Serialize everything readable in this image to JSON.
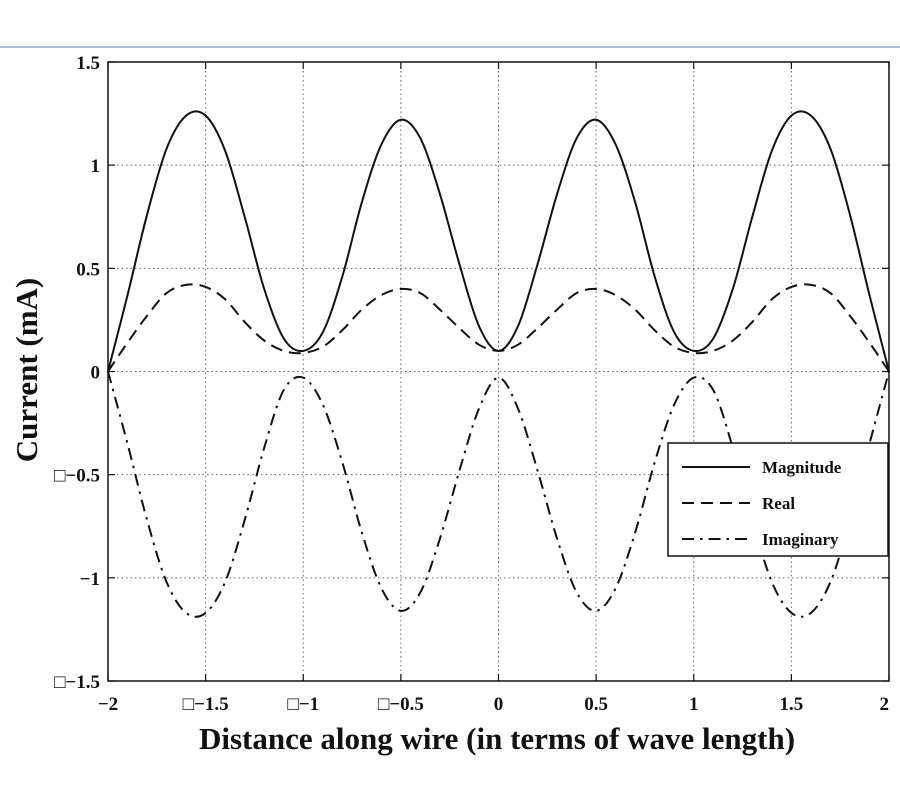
{
  "chart_data": {
    "type": "line",
    "title": "",
    "xlabel": "Distance along wire (in terms of wave length)",
    "ylabel": "Current (mA)",
    "xlim": [
      -2,
      2
    ],
    "ylim": [
      -1.5,
      1.5
    ],
    "grid": true,
    "legend_position": "right",
    "x_ticks": [
      {
        "value": -2,
        "label": "\u0005−2"
      },
      {
        "value": -1.5,
        "label": "□−1.5"
      },
      {
        "value": -1,
        "label": "□−1"
      },
      {
        "value": -0.5,
        "label": "□−0.5"
      },
      {
        "value": 0,
        "label": "0"
      },
      {
        "value": 0.5,
        "label": "0.5"
      },
      {
        "value": 1,
        "label": "1"
      },
      {
        "value": 1.5,
        "label": "1.5"
      },
      {
        "value": 2,
        "label": "2"
      }
    ],
    "y_ticks": [
      {
        "value": 1.5,
        "label": "1.5"
      },
      {
        "value": 1,
        "label": "1"
      },
      {
        "value": 0.5,
        "label": "0.5"
      },
      {
        "value": 0,
        "label": "0"
      },
      {
        "value": -0.5,
        "label": "□−0.5"
      },
      {
        "value": -1,
        "label": "−1"
      },
      {
        "value": -1.5,
        "label": "□−1.5"
      }
    ],
    "x": [
      -2.0,
      -1.9,
      -1.8,
      -1.7,
      -1.6,
      -1.5,
      -1.4,
      -1.3,
      -1.2,
      -1.1,
      -1.0,
      -0.9,
      -0.8,
      -0.7,
      -0.6,
      -0.5,
      -0.4,
      -0.3,
      -0.2,
      -0.1,
      0.0,
      0.1,
      0.2,
      0.3,
      0.4,
      0.5,
      0.6,
      0.7,
      0.8,
      0.9,
      1.0,
      1.1,
      1.2,
      1.3,
      1.4,
      1.5,
      1.6,
      1.7,
      1.8,
      1.9,
      2.0
    ],
    "series": [
      {
        "name": "Magnitude",
        "style": "solid",
        "values": [
          0.0,
          0.37,
          0.76,
          1.08,
          1.24,
          1.24,
          1.07,
          0.75,
          0.4,
          0.16,
          0.1,
          0.19,
          0.46,
          0.82,
          1.1,
          1.22,
          1.13,
          0.86,
          0.52,
          0.22,
          0.1,
          0.22,
          0.52,
          0.86,
          1.13,
          1.22,
          1.1,
          0.82,
          0.46,
          0.19,
          0.1,
          0.16,
          0.4,
          0.75,
          1.07,
          1.24,
          1.24,
          1.08,
          0.76,
          0.37,
          0.0
        ]
      },
      {
        "name": "Real",
        "style": "dashed",
        "values": [
          0.0,
          0.14,
          0.27,
          0.38,
          0.42,
          0.41,
          0.35,
          0.24,
          0.15,
          0.1,
          0.09,
          0.12,
          0.2,
          0.3,
          0.37,
          0.4,
          0.38,
          0.3,
          0.21,
          0.13,
          0.1,
          0.13,
          0.21,
          0.3,
          0.38,
          0.4,
          0.37,
          0.3,
          0.2,
          0.12,
          0.09,
          0.1,
          0.15,
          0.24,
          0.35,
          0.41,
          0.42,
          0.38,
          0.27,
          0.14,
          0.0
        ]
      },
      {
        "name": "Imaginary",
        "style": "dashdot",
        "values": [
          0.0,
          -0.35,
          -0.72,
          -1.02,
          -1.17,
          -1.17,
          -1.02,
          -0.72,
          -0.37,
          -0.09,
          -0.03,
          -0.16,
          -0.44,
          -0.78,
          -1.05,
          -1.16,
          -1.07,
          -0.81,
          -0.48,
          -0.18,
          -0.03,
          -0.18,
          -0.48,
          -0.81,
          -1.07,
          -1.16,
          -1.05,
          -0.78,
          -0.44,
          -0.16,
          -0.03,
          -0.09,
          -0.37,
          -0.72,
          -1.02,
          -1.17,
          -1.17,
          -1.02,
          -0.72,
          -0.35,
          0.0
        ]
      }
    ]
  },
  "colors": {
    "line": "#111111",
    "grid": "#666666",
    "top_rule": "#8ea9c8",
    "background": "#ffffff"
  }
}
